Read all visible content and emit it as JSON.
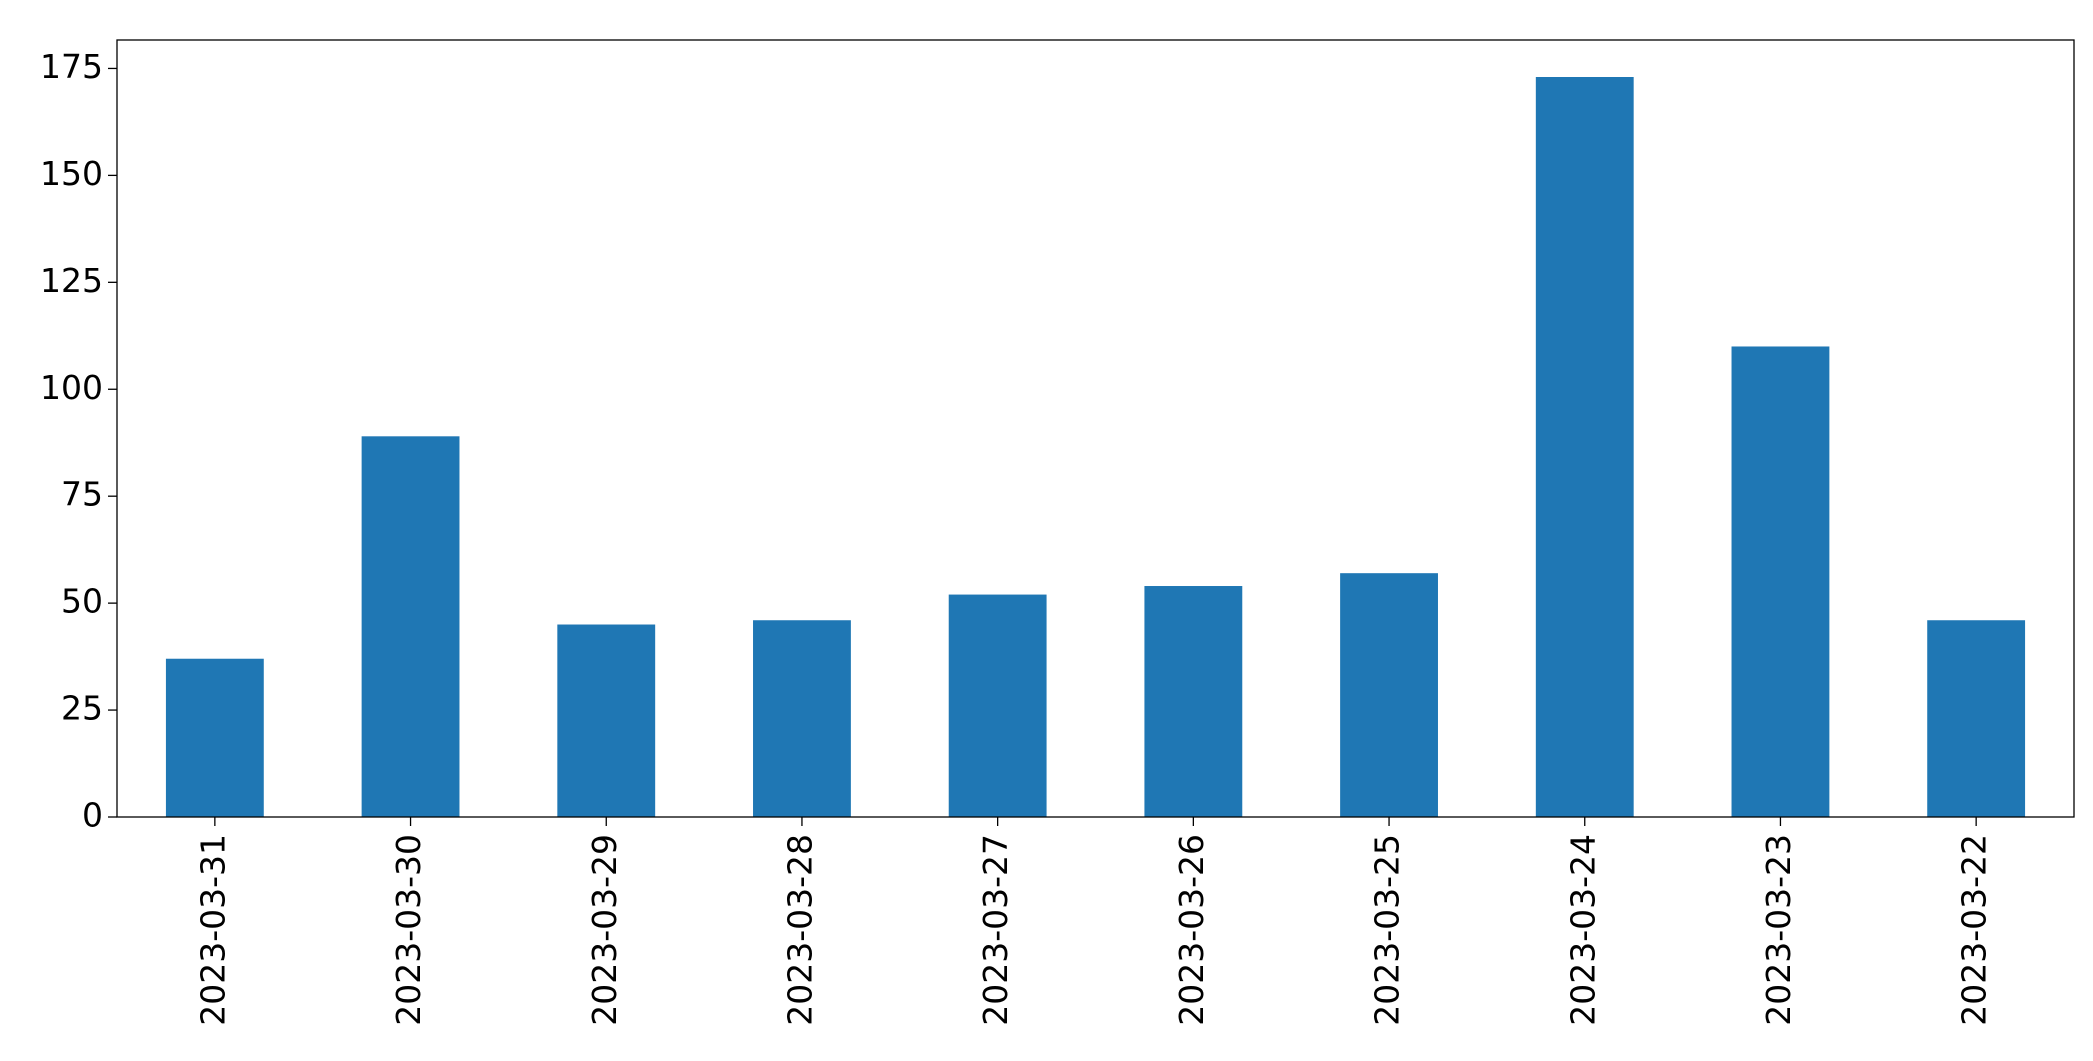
{
  "chart_data": {
    "type": "bar",
    "categories": [
      "2023-03-31",
      "2023-03-30",
      "2023-03-29",
      "2023-03-28",
      "2023-03-27",
      "2023-03-26",
      "2023-03-25",
      "2023-03-24",
      "2023-03-23",
      "2023-03-22"
    ],
    "values": [
      37,
      89,
      45,
      46,
      52,
      54,
      57,
      173,
      110,
      46
    ],
    "color": "#1f77b4",
    "ylim": [
      0,
      181.65
    ],
    "yticks": [
      0,
      25,
      50,
      75,
      100,
      125,
      150,
      175
    ],
    "grid": false
  }
}
